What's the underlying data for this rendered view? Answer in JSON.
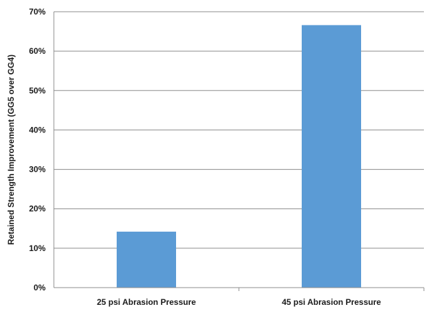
{
  "chart_data": {
    "type": "bar",
    "categories": [
      "25 psi Abrasion Pressure",
      "45 psi Abrasion Pressure"
    ],
    "values": [
      14.2,
      66.6
    ],
    "value_unit": "%",
    "title": "",
    "xlabel": "",
    "ylabel": "Retained Strength Improvement (GG5 over GG4)",
    "ylim": [
      0,
      70
    ],
    "y_ticks": [
      "0%",
      "10%",
      "20%",
      "30%",
      "40%",
      "50%",
      "60%",
      "70%"
    ],
    "grid": "horizontal",
    "legend": "none",
    "bar_color": "#5b9bd5"
  }
}
